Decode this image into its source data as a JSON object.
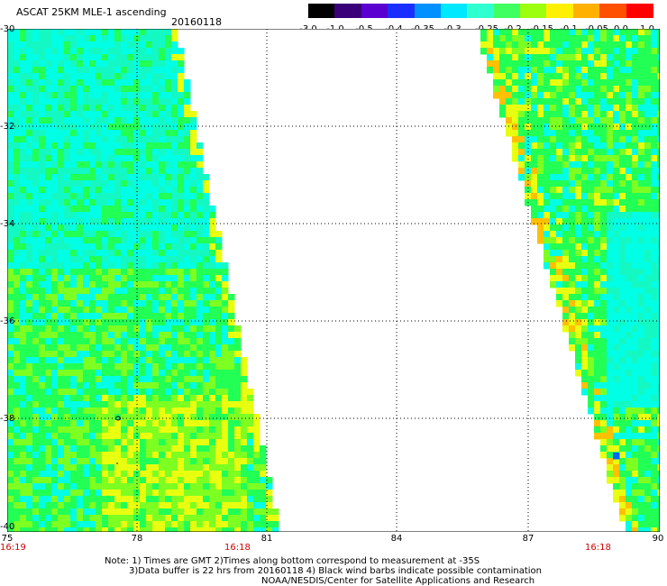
{
  "header": {
    "title": "ASCAT 25KM MLE-1 ascending",
    "date": "20160118"
  },
  "colorbar": {
    "labels": [
      "-3.0",
      "-1.0",
      "-0.5",
      "-0.4",
      "-0.35",
      "-0.3",
      "-0.25",
      "-0.2",
      "-0.15",
      "-0.1",
      "-0.05",
      "0.0",
      "1.0"
    ],
    "colors": [
      "#000000",
      "#3a007a",
      "#5a00d0",
      "#1a2fff",
      "#0090ff",
      "#00e8ff",
      "#30ffd0",
      "#40ff60",
      "#9cff10",
      "#fff000",
      "#ffb000",
      "#ff5000",
      "#ff0000"
    ]
  },
  "axes": {
    "lat_labels": [
      "-30",
      "-32",
      "-34",
      "-36",
      "-38",
      "-40"
    ],
    "lon_labels": [
      "75",
      "78",
      "81",
      "84",
      "87",
      "90"
    ]
  },
  "times": {
    "left": "16:19",
    "mid": "16:18",
    "right": "16:18"
  },
  "notes": {
    "line1": "Note: 1) Times are GMT 2)Times along bottom correspond to measurement at -35S",
    "line2": "3)Data buffer is 22 hrs from 20160118 4) Black wind barbs indicate possible contamination",
    "line3": "NOAA/NESDIS/Center for Satellite Applications and Research"
  },
  "swath_colors": {
    "cyan": "#00ffe4",
    "green": "#22ff55",
    "lime": "#7dff22",
    "yellow": "#e8ff10",
    "orange": "#ffc000",
    "blue": "#0064ff"
  }
}
